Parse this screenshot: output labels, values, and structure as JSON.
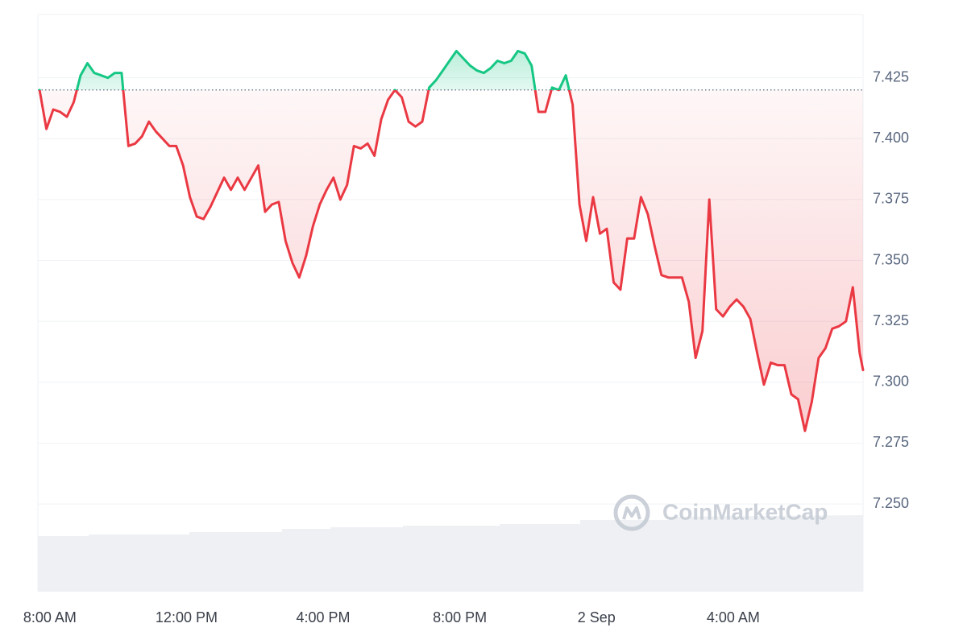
{
  "chart_data": {
    "type": "line",
    "watermark": "CoinMarketCap",
    "baseline": 7.42,
    "up_color": "#16c784",
    "down_color": "#ea3943",
    "grid": true,
    "xlim": [
      -0.35,
      23.8
    ],
    "xticks": [
      {
        "value": 0,
        "label": "8:00 AM"
      },
      {
        "value": 4,
        "label": "12:00 PM"
      },
      {
        "value": 8,
        "label": "4:00 PM"
      },
      {
        "value": 12,
        "label": "8:00 PM"
      },
      {
        "value": 16,
        "label": "2 Sep"
      },
      {
        "value": 20,
        "label": "4:00 AM"
      }
    ],
    "ylim": [
      7.214,
      7.451
    ],
    "yticks": [
      {
        "value": 7.25,
        "label": "7.250"
      },
      7.275,
      {
        "value": 7.3,
        "label": "7.300"
      },
      7.325,
      {
        "value": 7.35,
        "label": "7.350"
      },
      7.375,
      {
        "value": 7.4,
        "label": "7.400"
      },
      7.425
    ],
    "x": [
      -0.3,
      -0.1,
      0.1,
      0.3,
      0.5,
      0.7,
      0.9,
      1.1,
      1.3,
      1.5,
      1.7,
      1.9,
      2.1,
      2.3,
      2.5,
      2.7,
      2.9,
      3.1,
      3.3,
      3.5,
      3.7,
      3.9,
      4.1,
      4.3,
      4.5,
      4.7,
      4.9,
      5.1,
      5.3,
      5.5,
      5.7,
      5.9,
      6.1,
      6.3,
      6.5,
      6.7,
      6.9,
      7.1,
      7.3,
      7.5,
      7.7,
      7.9,
      8.1,
      8.3,
      8.5,
      8.7,
      8.9,
      9.1,
      9.3,
      9.5,
      9.7,
      9.9,
      10.1,
      10.3,
      10.5,
      10.7,
      10.9,
      11.1,
      11.3,
      11.5,
      11.7,
      11.9,
      12.1,
      12.3,
      12.5,
      12.7,
      12.9,
      13.1,
      13.3,
      13.5,
      13.7,
      13.9,
      14.1,
      14.3,
      14.5,
      14.7,
      14.9,
      15.1,
      15.3,
      15.5,
      15.7,
      15.9,
      16.1,
      16.3,
      16.5,
      16.7,
      16.9,
      17.1,
      17.3,
      17.5,
      17.7,
      17.9,
      18.1,
      18.3,
      18.5,
      18.7,
      18.9,
      19.1,
      19.3,
      19.5,
      19.7,
      19.9,
      20.1,
      20.3,
      20.5,
      20.7,
      20.9,
      21.1,
      21.3,
      21.5,
      21.7,
      21.9,
      22.1,
      22.3,
      22.5,
      22.7,
      22.9,
      23.1,
      23.3,
      23.5,
      23.7,
      23.8
    ],
    "values": [
      7.42,
      7.404,
      7.412,
      7.411,
      7.409,
      7.415,
      7.426,
      7.431,
      7.427,
      7.426,
      7.425,
      7.427,
      7.427,
      7.397,
      7.398,
      7.401,
      7.407,
      7.403,
      7.4,
      7.397,
      7.397,
      7.389,
      7.376,
      7.368,
      7.367,
      7.372,
      7.378,
      7.384,
      7.379,
      7.384,
      7.379,
      7.384,
      7.389,
      7.37,
      7.373,
      7.374,
      7.358,
      7.349,
      7.343,
      7.352,
      7.364,
      7.373,
      7.379,
      7.384,
      7.375,
      7.381,
      7.397,
      7.396,
      7.398,
      7.393,
      7.408,
      7.416,
      7.42,
      7.417,
      7.407,
      7.405,
      7.407,
      7.421,
      7.424,
      7.428,
      7.432,
      7.436,
      7.433,
      7.43,
      7.428,
      7.427,
      7.429,
      7.432,
      7.431,
      7.432,
      7.436,
      7.435,
      7.43,
      7.411,
      7.411,
      7.421,
      7.42,
      7.426,
      7.414,
      7.373,
      7.358,
      7.376,
      7.361,
      7.363,
      7.341,
      7.338,
      7.359,
      7.359,
      7.376,
      7.369,
      7.356,
      7.344,
      7.343,
      7.343,
      7.343,
      7.333,
      7.31,
      7.321,
      7.375,
      7.33,
      7.327,
      7.331,
      7.334,
      7.331,
      7.326,
      7.312,
      7.299,
      7.308,
      7.307,
      7.307,
      7.295,
      7.293,
      7.28,
      7.292,
      7.31,
      7.314,
      7.322,
      7.323,
      7.325,
      7.339,
      7.312,
      7.305
    ]
  }
}
